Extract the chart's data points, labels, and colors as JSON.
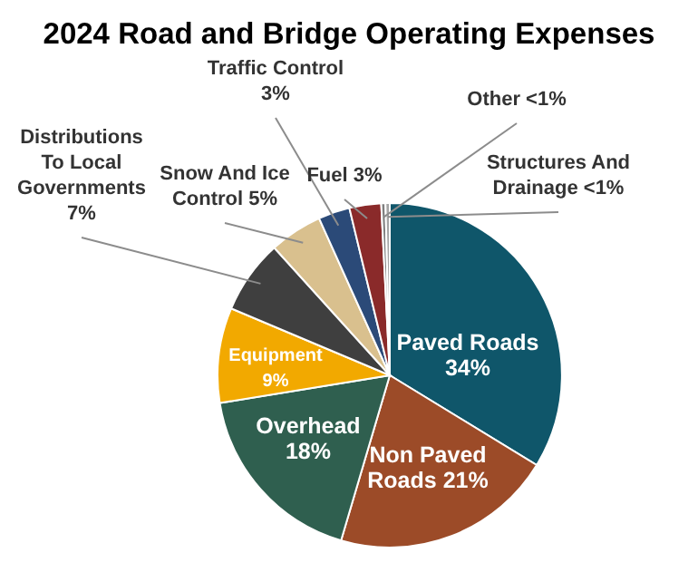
{
  "chart_data": {
    "type": "pie",
    "title": "2024 Road and Bridge Operating Expenses",
    "categories": [
      "Paved Roads",
      "Non Paved Roads",
      "Overhead",
      "Equipment",
      "Distributions To Local Governments",
      "Snow And Ice Control",
      "Traffic Control",
      "Fuel",
      "Other",
      "Structures And Drainage"
    ],
    "values": [
      34,
      21,
      18,
      9,
      7,
      5,
      3,
      3,
      0.4,
      0.4
    ],
    "value_labels": [
      "34%",
      "21%",
      "18%",
      "9%",
      "7%",
      "5%",
      "3%",
      "3%",
      "<1%",
      "<1%"
    ],
    "colors": [
      "#0f566a",
      "#9c4b28",
      "#2f5f4f",
      "#f2a900",
      "#3f3f3f",
      "#d9c08e",
      "#2b4a78",
      "#8a2a2a",
      "#7f7f7f",
      "#a5a5a5"
    ]
  }
}
